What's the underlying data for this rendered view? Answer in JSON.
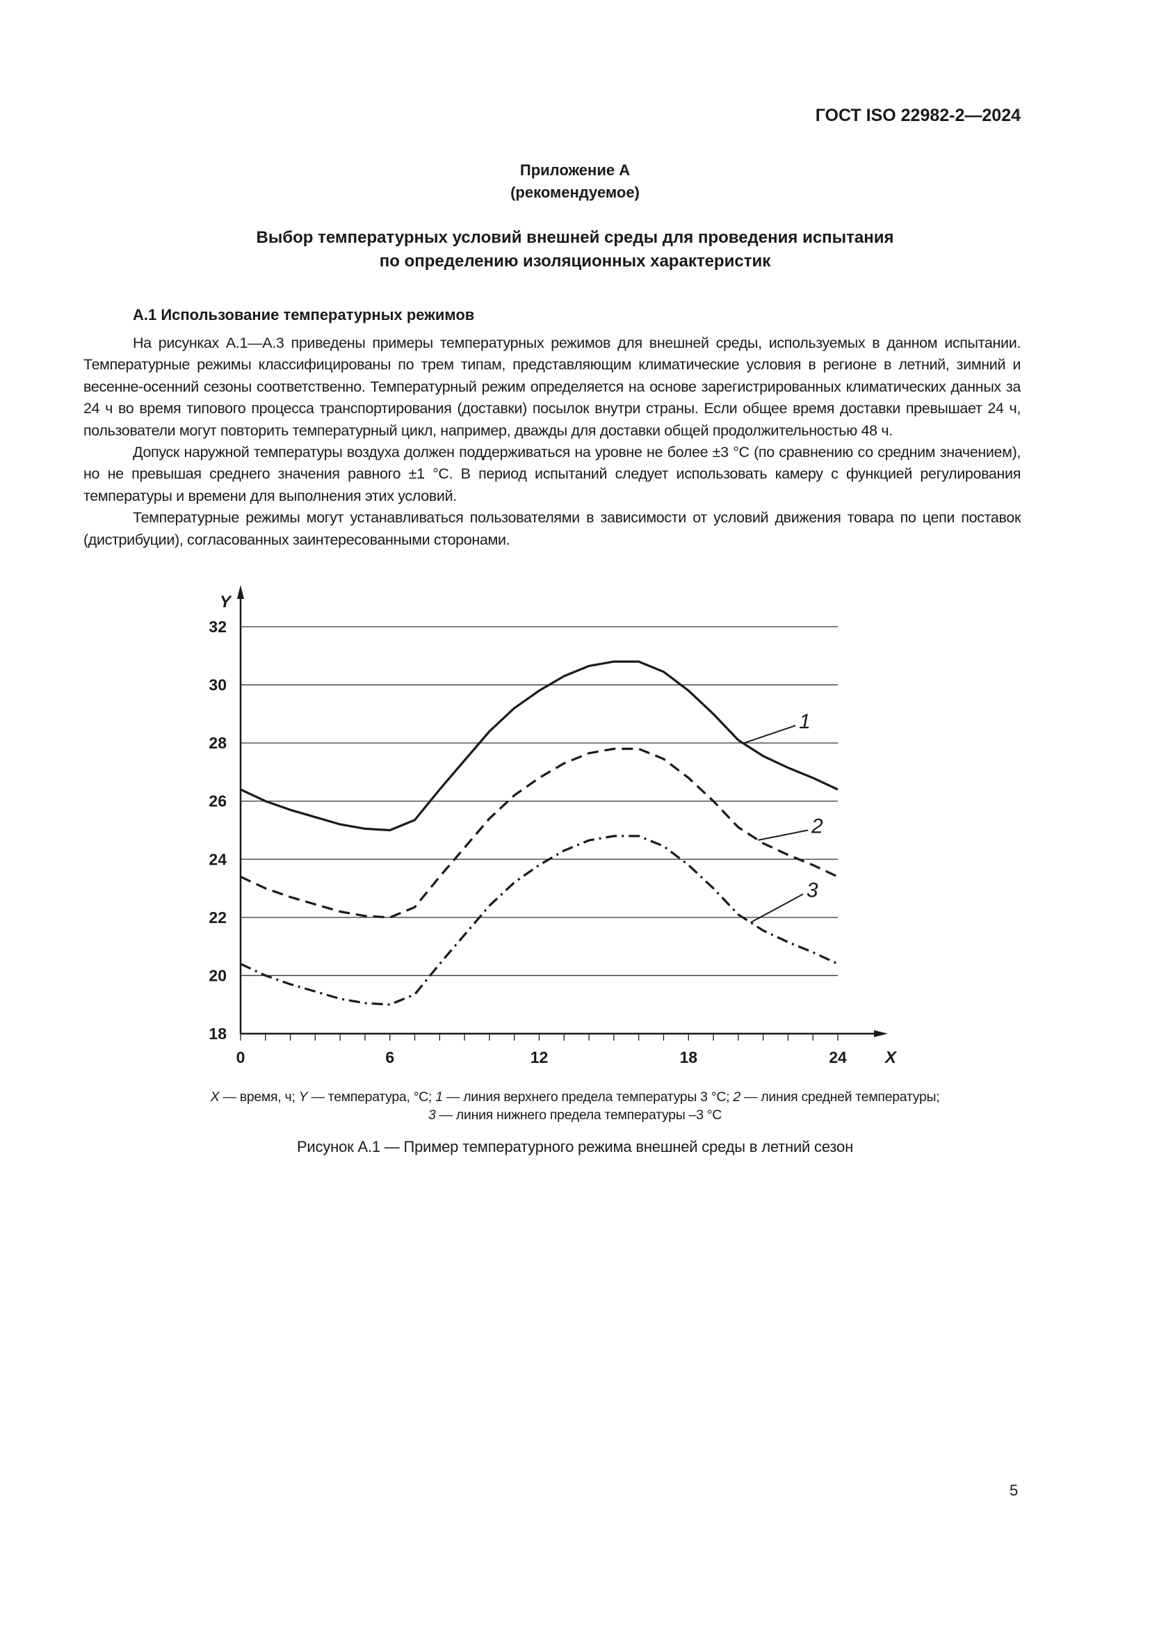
{
  "header": {
    "doc_code": "ГОСТ ISO 22982-2—2024"
  },
  "annex": {
    "title": "Приложение А",
    "status": "(рекомендуемое)",
    "heading_lines": [
      "Выбор температурных условий внешней среды для проведения испытания",
      "по определению изоляционных характеристик"
    ]
  },
  "section": {
    "heading": "А.1 Использование температурных режимов",
    "paragraphs": [
      "На рисунках А.1—А.3 приведены примеры температурных режимов для внешней среды, используемых в данном испытании. Температурные режимы классифицированы по трем типам, представляющим климатические условия в регионе в летний, зимний и весенне-осенний сезоны соответственно. Температурный режим определяется на основе зарегистрированных климатических данных за 24 ч во время типового процесса транспортирования (доставки) посылок внутри страны. Если общее время доставки превышает 24 ч, пользователи могут повторить температурный цикл, например, дважды для доставки общей продолжительностью 48 ч.",
      "Допуск наружной температуры воздуха должен поддерживаться на уровне не более ±3 °С (по сравнению со средним значением), но не превышая среднего значения равного ±1 °С. В период испытаний следует использовать камеру с функцией регулирования температуры и времени для выполнения этих условий.",
      "Температурные режимы могут устанавливаться пользователями в зависимости от условий движения товара по цепи поставок (дистрибуции), согласованных заинтересованными сторонами."
    ]
  },
  "figure": {
    "legend": {
      "x_sym": "X",
      "x_desc": " — время, ч; ",
      "y_sym": "Y",
      "y_desc": " — температура, °С; ",
      "s1_sym": "1",
      "s1_desc": " — линия верхнего предела температуры 3 °С; ",
      "s2_sym": "2",
      "s2_desc": " — линия средней температуры;",
      "s3_sym": "3",
      "s3_desc": " — линия нижнего предела температуры –3 °С"
    },
    "caption": "Рисунок А.1 — Пример температурного режима внешней среды в летний сезон"
  },
  "chart_data": {
    "type": "line",
    "xlabel": "X",
    "ylabel": "Y",
    "xlim": [
      0,
      24
    ],
    "ylim": [
      18,
      32
    ],
    "xticks": [
      0,
      6,
      12,
      18,
      24
    ],
    "yticks": [
      18,
      20,
      22,
      24,
      26,
      28,
      30,
      32
    ],
    "grid": "horizontal",
    "x": [
      0,
      1,
      2,
      3,
      4,
      5,
      6,
      7,
      8,
      9,
      10,
      11,
      12,
      13,
      14,
      15,
      16,
      17,
      18,
      19,
      20,
      21,
      22,
      23,
      24
    ],
    "series": [
      {
        "name": "1",
        "style": "solid",
        "values": [
          26.4,
          26.0,
          25.7,
          25.45,
          25.2,
          25.05,
          25.0,
          25.35,
          26.4,
          27.4,
          28.4,
          29.2,
          29.8,
          30.3,
          30.65,
          30.8,
          30.8,
          30.45,
          29.8,
          29.0,
          28.1,
          27.55,
          27.15,
          26.8,
          26.4
        ]
      },
      {
        "name": "2",
        "style": "dashed",
        "values": [
          23.4,
          23.0,
          22.7,
          22.45,
          22.2,
          22.05,
          22.0,
          22.35,
          23.4,
          24.4,
          25.4,
          26.2,
          26.8,
          27.3,
          27.65,
          27.8,
          27.8,
          27.45,
          26.8,
          26.0,
          25.1,
          24.55,
          24.15,
          23.8,
          23.4
        ]
      },
      {
        "name": "3",
        "style": "dash-dot",
        "values": [
          20.4,
          20.0,
          19.7,
          19.45,
          19.2,
          19.05,
          19.0,
          19.35,
          20.4,
          21.4,
          22.4,
          23.2,
          23.8,
          24.3,
          24.65,
          24.8,
          24.8,
          24.45,
          23.8,
          23.0,
          22.1,
          21.55,
          21.15,
          20.8,
          20.4
        ]
      }
    ],
    "colors": {
      "line": "#1a1a1a",
      "grid": "#333333"
    }
  },
  "page_number": "5"
}
